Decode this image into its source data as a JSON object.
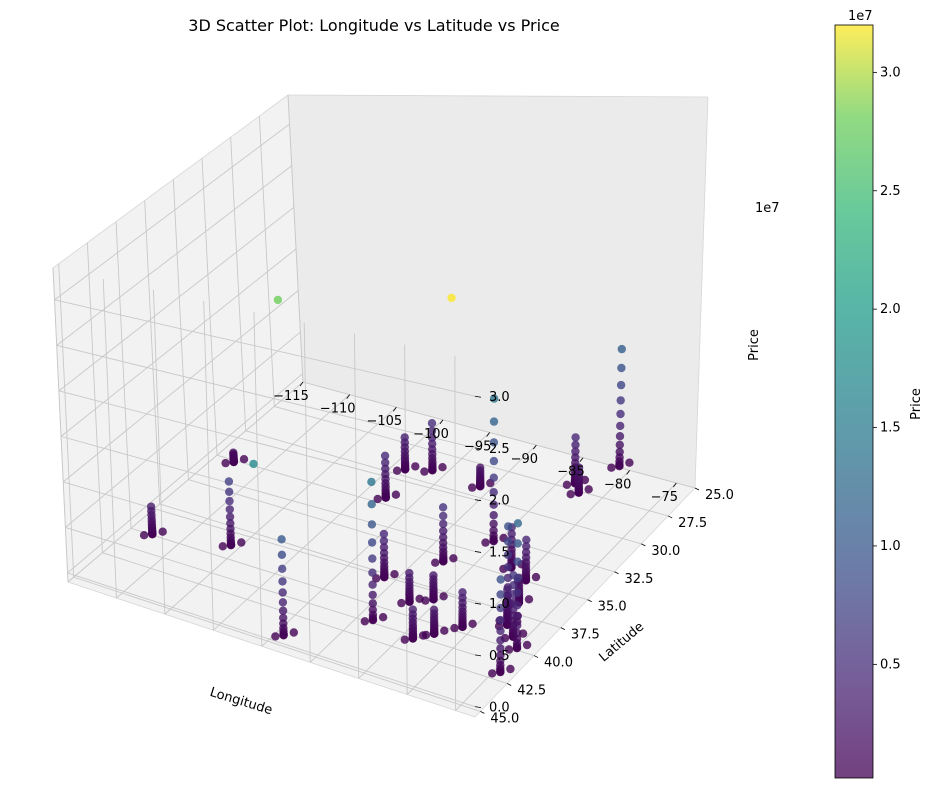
{
  "chart_data": {
    "type": "scatter",
    "title": "3D Scatter Plot: Longitude vs Latitude vs Price",
    "xlabel": "Longitude",
    "ylabel": "Latitude",
    "zlabel": "Price",
    "z_offset_label": "1e7",
    "xlim": [
      -115,
      -73
    ],
    "ylim": [
      25,
      45.5
    ],
    "zlim": [
      -1000000,
      33500000
    ],
    "x_ticks": [
      "−115",
      "−110",
      "−105",
      "−100",
      "−95",
      "−90",
      "−85",
      "−80",
      "−75"
    ],
    "y_ticks": [
      "25.0",
      "27.5",
      "30.0",
      "32.5",
      "35.0",
      "37.5",
      "40.0",
      "42.5",
      "45.0"
    ],
    "z_ticks": [
      "0.0",
      "0.5",
      "1.0",
      "1.5",
      "2.0",
      "2.5",
      "3.0"
    ],
    "grid": true,
    "colormap": "viridis",
    "colorbar": {
      "label": "Price",
      "offset_label": "1e7",
      "ticks": [
        "0.5",
        "1.0",
        "1.5",
        "2.0",
        "2.5",
        "3.0"
      ],
      "range": [
        200000,
        32000000
      ]
    },
    "clusters": [
      {
        "x": -112.1,
        "y": 33.4,
        "zmax": 1200000
      },
      {
        "x": -111.9,
        "y": 40.7,
        "zmax": 3200000
      },
      {
        "x": -104.9,
        "y": 39.7,
        "zmax": 7000000
      },
      {
        "x": -97.7,
        "y": 30.3,
        "zmax": 3500000
      },
      {
        "x": -96.8,
        "y": 32.8,
        "zmax": 4500000
      },
      {
        "x": -95.4,
        "y": 29.8,
        "zmax": 5000000
      },
      {
        "x": -93.3,
        "y": 45.0,
        "zmax": 10000000
      },
      {
        "x": -90.2,
        "y": 38.6,
        "zmax": 4500000
      },
      {
        "x": -90.1,
        "y": 30.0,
        "zmax": 2000000
      },
      {
        "x": -87.6,
        "y": 41.9,
        "zmax": 14000000
      },
      {
        "x": -86.8,
        "y": 36.2,
        "zmax": 5500000
      },
      {
        "x": -86.2,
        "y": 39.8,
        "zmax": 3000000
      },
      {
        "x": -84.4,
        "y": 33.7,
        "zmax": 14000000
      },
      {
        "x": -83.0,
        "y": 42.3,
        "zmax": 3000000
      },
      {
        "x": -84.5,
        "y": 39.1,
        "zmax": 2500000
      },
      {
        "x": -81.7,
        "y": 41.5,
        "zmax": 2500000
      },
      {
        "x": -81.4,
        "y": 28.5,
        "zmax": 2500000
      },
      {
        "x": -80.8,
        "y": 35.2,
        "zmax": 4000000
      },
      {
        "x": -80.0,
        "y": 40.4,
        "zmax": 3500000
      },
      {
        "x": -80.2,
        "y": 25.8,
        "zmax": 11000000
      },
      {
        "x": -82.5,
        "y": 27.9,
        "zmax": 4500000
      },
      {
        "x": -78.6,
        "y": 35.8,
        "zmax": 4000000
      },
      {
        "x": -77.0,
        "y": 38.9,
        "zmax": 9000000
      },
      {
        "x": -76.6,
        "y": 39.3,
        "zmax": 3500000
      },
      {
        "x": -75.2,
        "y": 40.0,
        "zmax": 6000000
      },
      {
        "x": -74.0,
        "y": 40.7,
        "zmax": 12000000
      },
      {
        "x": -73.5,
        "y": 42.7,
        "zmax": 9000000
      },
      {
        "x": -77.4,
        "y": 37.5,
        "zmax": 2500000
      }
    ],
    "outliers": [
      {
        "x": -81.0,
        "y": 40.5,
        "z": 32000000
      },
      {
        "x": -99.0,
        "y": 40.0,
        "z": 28000000
      },
      {
        "x": -96.0,
        "y": 45.0,
        "z": 17000000
      }
    ]
  }
}
